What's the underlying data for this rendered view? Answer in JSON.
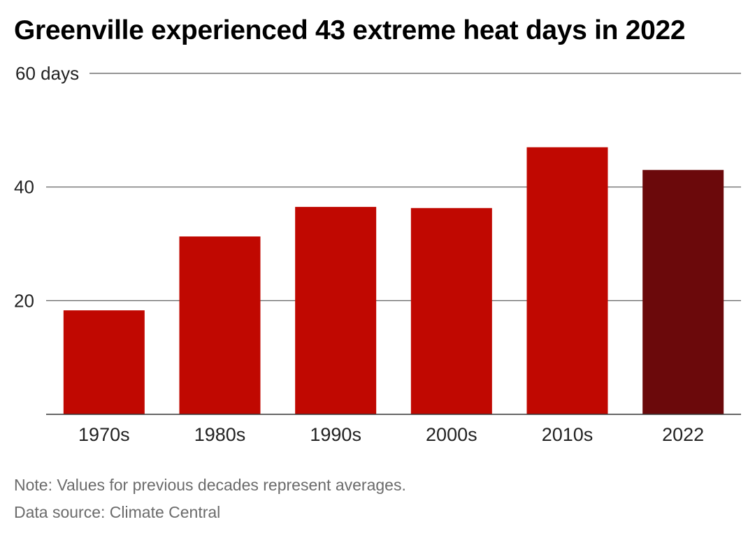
{
  "chart_data": {
    "type": "bar",
    "title": "Greenville experienced 43 extreme heat days in 2022",
    "categories": [
      "1970s",
      "1980s",
      "1990s",
      "2000s",
      "2010s",
      "2022"
    ],
    "values": [
      18.3,
      31.3,
      36.5,
      36.3,
      47.0,
      43.0
    ],
    "colors": [
      "#c00801",
      "#c00801",
      "#c00801",
      "#c00801",
      "#c00801",
      "#6b090b"
    ],
    "ylim": [
      0,
      60
    ],
    "yticks": [
      {
        "value": 20,
        "label": "20"
      },
      {
        "value": 40,
        "label": "40"
      },
      {
        "value": 60,
        "label": "60 days"
      }
    ],
    "grid": true,
    "xlabel": "",
    "ylabel": ""
  },
  "notes": {
    "note": "Note: Values for previous decades represent averages.",
    "source": "Data source: Climate Central"
  }
}
